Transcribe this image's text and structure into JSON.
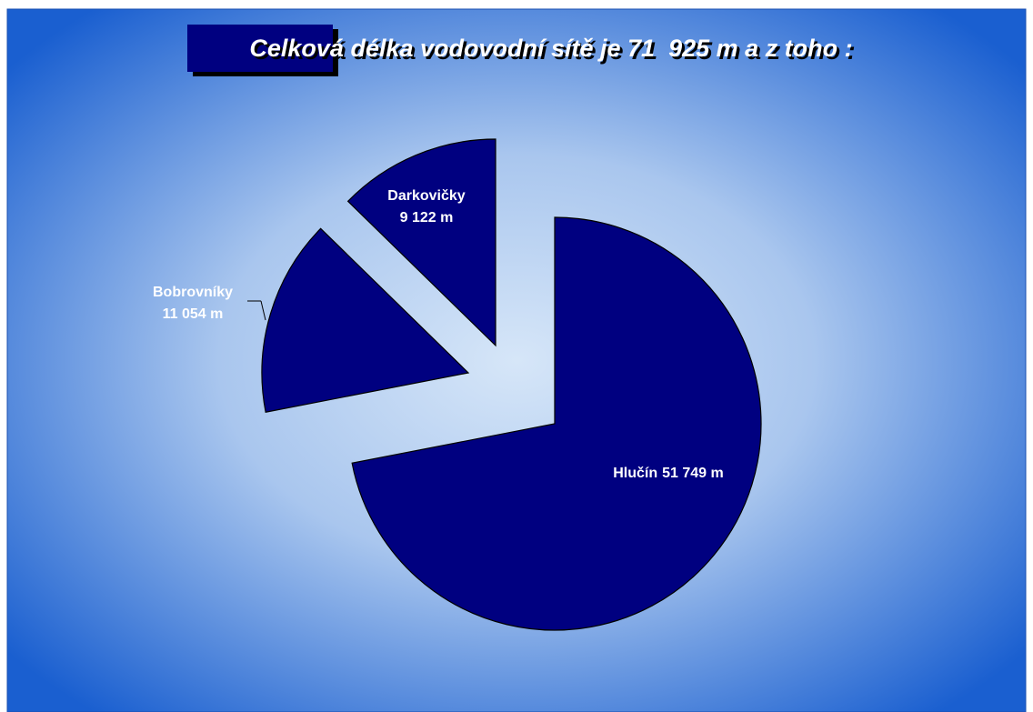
{
  "chart_data": {
    "type": "pie",
    "title": "Celková délka vodovodní sítě je 71  925 m a z toho :",
    "categories": [
      "Hlučín",
      "Bobrovníky",
      "Darkovičky"
    ],
    "values": [
      51749,
      11054,
      9122
    ],
    "value_labels": [
      "51 749 m",
      "11 054 m",
      "9 122 m"
    ],
    "color": "#000080"
  }
}
